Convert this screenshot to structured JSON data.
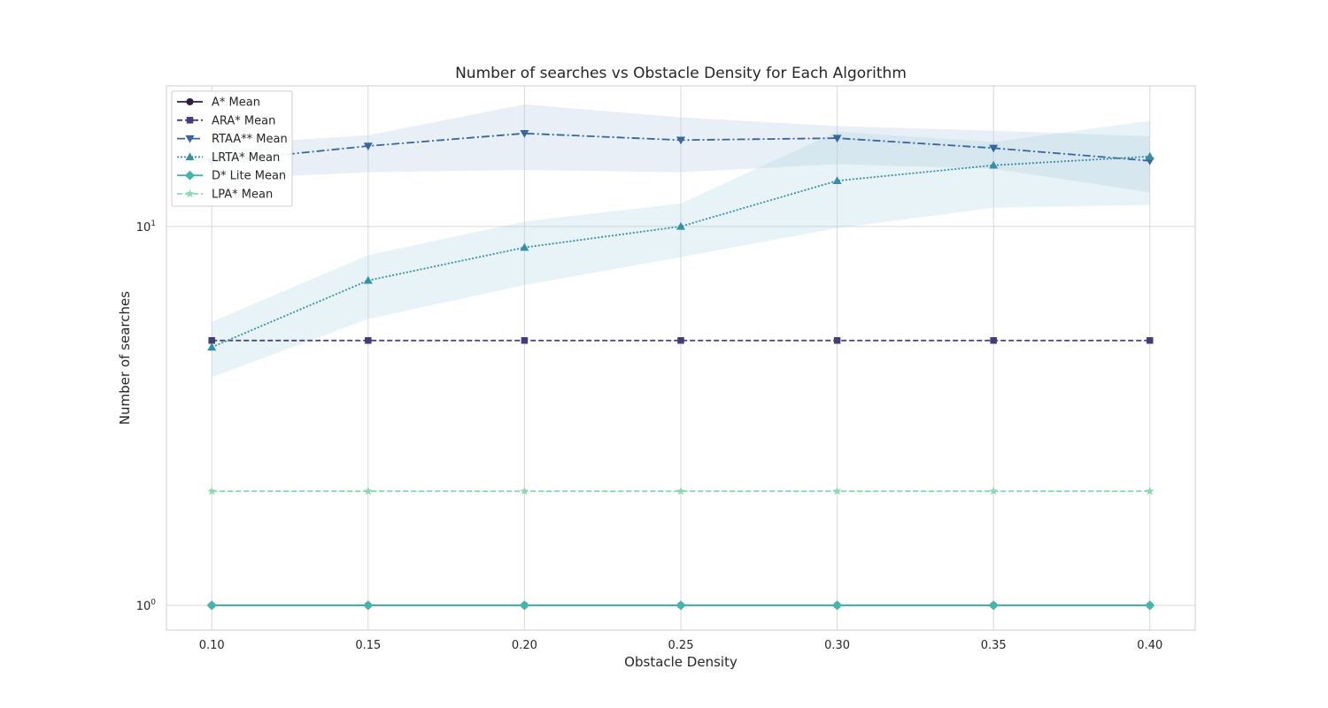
{
  "chart_data": {
    "type": "line",
    "title": "Number of searches vs Obstacle Density for Each Algorithm",
    "xlabel": "Obstacle Density",
    "ylabel": "Number of searches",
    "yscale": "log",
    "grid": true,
    "legend_position": "top-left",
    "x": [
      0.1,
      0.15,
      0.2,
      0.25,
      0.3,
      0.35,
      0.4
    ],
    "x_tick_labels": [
      "0.10",
      "0.15",
      "0.20",
      "0.25",
      "0.30",
      "0.35",
      "0.40"
    ],
    "xlim": [
      0.0855,
      0.4145
    ],
    "ylim": [
      0.86,
      23.5
    ],
    "y_ticks": [
      {
        "value": 1,
        "base": "10",
        "exp": "0"
      },
      {
        "value": 10,
        "base": "10",
        "exp": "1"
      }
    ],
    "band_color": "#b0c4de",
    "series": [
      {
        "name": "A* Mean",
        "color": "#2e1e3b",
        "marker": "circle",
        "dash": "solid",
        "values": [
          1,
          1,
          1,
          1,
          1,
          1,
          1
        ]
      },
      {
        "name": "ARA* Mean",
        "color": "#413d7b",
        "marker": "square",
        "dash": "dashed",
        "values": [
          5,
          5,
          5,
          5,
          5,
          5,
          5
        ]
      },
      {
        "name": "RTAA** Mean",
        "color": "#37659e",
        "marker": "triangle-down",
        "dash": "dashdot",
        "values": [
          14.8,
          16.3,
          17.6,
          16.9,
          17.1,
          16.1,
          14.9
        ],
        "band_low": [
          13.3,
          13.9,
          14.1,
          13.9,
          14.6,
          14.2,
          12.3
        ],
        "band_high": [
          16.4,
          17.4,
          21.0,
          19.4,
          18.4,
          17.9,
          17.3
        ]
      },
      {
        "name": "LRTA* Mean",
        "color": "#348fa7",
        "marker": "triangle-up",
        "dash": "dotted",
        "values": [
          4.8,
          7.2,
          8.8,
          10.0,
          13.2,
          14.5,
          15.3
        ],
        "band_low": [
          4.0,
          5.7,
          7.0,
          8.3,
          9.9,
          11.2,
          11.4
        ],
        "band_high": [
          5.6,
          8.4,
          10.3,
          11.5,
          17.8,
          16.7,
          19.0
        ]
      },
      {
        "name": "D* Lite Mean",
        "color": "#40b7ad",
        "marker": "diamond",
        "dash": "solid",
        "values": [
          1,
          1,
          1,
          1,
          1,
          1,
          1
        ]
      },
      {
        "name": "LPA* Mean",
        "color": "#8bdab2",
        "marker": "star",
        "dash": "dashed",
        "values": [
          2,
          2,
          2,
          2,
          2,
          2,
          2
        ]
      }
    ]
  }
}
